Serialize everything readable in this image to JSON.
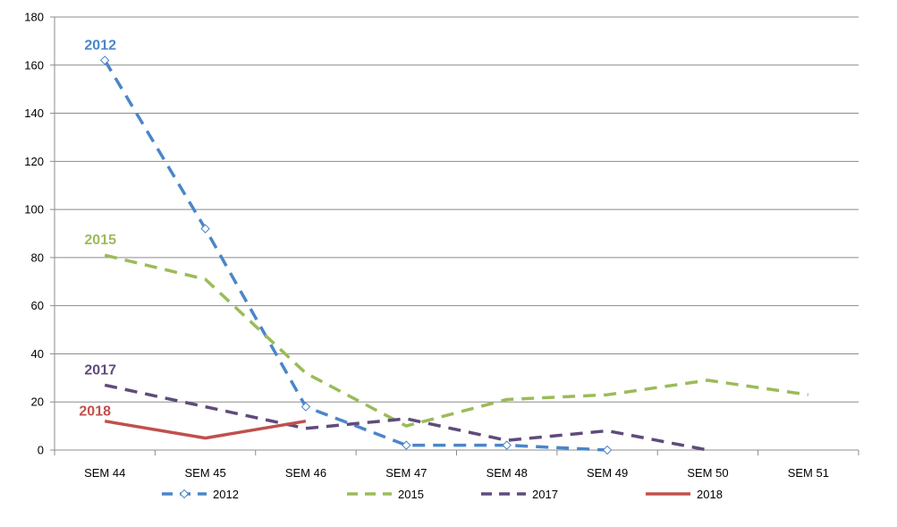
{
  "chart_data": {
    "type": "line",
    "categories": [
      "SEM 44",
      "SEM 45",
      "SEM 46",
      "SEM 47",
      "SEM 48",
      "SEM 49",
      "SEM 50",
      "SEM 51"
    ],
    "ylim": [
      0,
      180
    ],
    "yticks": [
      0,
      20,
      40,
      60,
      80,
      100,
      120,
      140,
      160,
      180
    ],
    "grid": true,
    "legend_position": "bottom",
    "series": [
      {
        "name": "2012",
        "color": "#4a86c8",
        "dashed": true,
        "marker": "diamond",
        "values": [
          162,
          92,
          18,
          2,
          2,
          0,
          null,
          null
        ],
        "label_text": "2012"
      },
      {
        "name": "2015",
        "color": "#9bbb59",
        "dashed": true,
        "marker": "none",
        "values": [
          81,
          71,
          32,
          10,
          21,
          23,
          29,
          23
        ],
        "label_text": "2015"
      },
      {
        "name": "2017",
        "color": "#5f4b7b",
        "dashed": true,
        "marker": "none",
        "values": [
          27,
          18,
          9,
          13,
          4,
          8,
          0,
          null
        ],
        "label_text": "2017"
      },
      {
        "name": "2018",
        "color": "#c0504d",
        "dashed": false,
        "marker": "none",
        "values": [
          12,
          5,
          12,
          null,
          null,
          null,
          null,
          null
        ],
        "label_text": "2018"
      }
    ]
  }
}
